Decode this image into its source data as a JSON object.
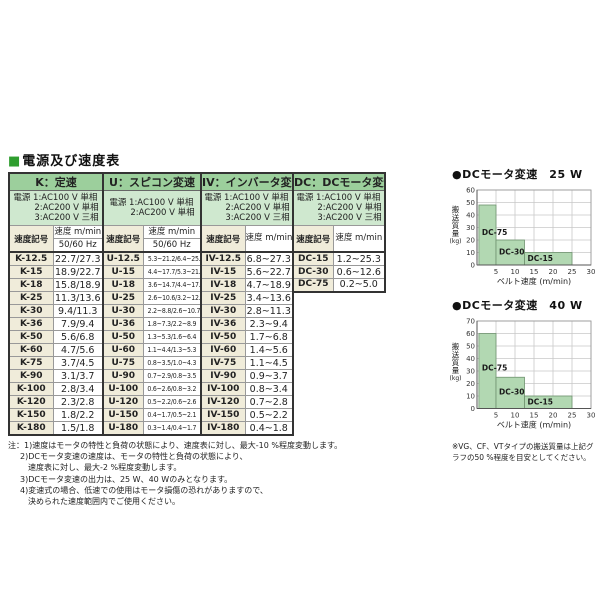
{
  "page_title": {
    "marker": "■",
    "text": "電源及び速度表"
  },
  "speed_table": {
    "sections": [
      {
        "id": "K",
        "header": "K：定速",
        "power_lines": [
          "電源 1:AC100 V 単相",
          "2:AC200 V 単相",
          "3:AC200 V 三相"
        ],
        "symbol_header": "速度記号",
        "speed_header": "速度 m/min",
        "freq_header": "50/60 Hz",
        "rows": [
          [
            "K-12.5",
            "22.7/27.3"
          ],
          [
            "K-15",
            "18.9/22.7"
          ],
          [
            "K-18",
            "15.8/18.9"
          ],
          [
            "K-25",
            "11.3/13.6"
          ],
          [
            "K-30",
            "9.4/11.3"
          ],
          [
            "K-36",
            "7.9/9.4"
          ],
          [
            "K-50",
            "5.6/6.8"
          ],
          [
            "K-60",
            "4.7/5.6"
          ],
          [
            "K-75",
            "3.7/4.5"
          ],
          [
            "K-90",
            "3.1/3.7"
          ],
          [
            "K-100",
            "2.8/3.4"
          ],
          [
            "K-120",
            "2.3/2.8"
          ],
          [
            "K-150",
            "1.8/2.2"
          ],
          [
            "K-180",
            "1.5/1.8"
          ]
        ]
      },
      {
        "id": "U",
        "header": "U：スピコン変速",
        "power_lines": [
          "電源 1:AC100 V 単相",
          "2:AC200 V 単相"
        ],
        "symbol_header": "速度記号",
        "speed_header": "速度 m/min",
        "freq_header": "50/60 Hz",
        "rows": [
          [
            "U-12.5",
            "5.3~21.2/6.4~25.8"
          ],
          [
            "U-15",
            "4.4~17.7/5.3~21.5"
          ],
          [
            "U-18",
            "3.6~14.7/4.4~17.9"
          ],
          [
            "U-25",
            "2.6~10.6/3.2~12.9"
          ],
          [
            "U-30",
            "2.2~8.8/2.6~10.7"
          ],
          [
            "U-36",
            "1.8~7.3/2.2~8.9"
          ],
          [
            "U-50",
            "1.3~5.3/1.6~6.4"
          ],
          [
            "U-60",
            "1.1~4.4/1.3~5.3"
          ],
          [
            "U-75",
            "0.8~3.5/1.0~4.3"
          ],
          [
            "U-90",
            "0.7~2.9/0.8~3.5"
          ],
          [
            "U-100",
            "0.6~2.6/0.8~3.2"
          ],
          [
            "U-120",
            "0.5~2.2/0.6~2.6"
          ],
          [
            "U-150",
            "0.4~1.7/0.5~2.1"
          ],
          [
            "U-180",
            "0.3~1.4/0.4~1.7"
          ]
        ]
      },
      {
        "id": "IV",
        "header": "IV：インバータ変速",
        "power_lines": [
          "電源 1:AC100 V 単相",
          "2:AC200 V 単相",
          "3:AC200 V 三相"
        ],
        "symbol_header": "速度記号",
        "speed_header": "速度 m/min",
        "freq_header": null,
        "rows": [
          [
            "IV-12.5",
            "6.8~27.3"
          ],
          [
            "IV-15",
            "5.6~22.7"
          ],
          [
            "IV-18",
            "4.7~18.9"
          ],
          [
            "IV-25",
            "3.4~13.6"
          ],
          [
            "IV-30",
            "2.8~11.3"
          ],
          [
            "IV-36",
            "2.3~9.4"
          ],
          [
            "IV-50",
            "1.7~6.8"
          ],
          [
            "IV-60",
            "1.4~5.6"
          ],
          [
            "IV-75",
            "1.1~4.5"
          ],
          [
            "IV-90",
            "0.9~3.7"
          ],
          [
            "IV-100",
            "0.8~3.4"
          ],
          [
            "IV-120",
            "0.7~2.8"
          ],
          [
            "IV-150",
            "0.5~2.2"
          ],
          [
            "IV-180",
            "0.4~1.8"
          ]
        ]
      },
      {
        "id": "DC",
        "header": "DC：DCモータ変速",
        "power_lines": [
          "電源 1:AC100 V 単相",
          "2:AC200 V 単相",
          "3:AC200 V 三相"
        ],
        "symbol_header": "速度記号",
        "speed_header": "速度 m/min",
        "freq_header": null,
        "rows": [
          [
            "DC-15",
            "1.2~25.3"
          ],
          [
            "DC-30",
            "0.6~12.6"
          ],
          [
            "DC-75",
            "0.2~5.0"
          ]
        ]
      }
    ]
  },
  "notes": [
    {
      "indent": 0,
      "text": "注：1)速度はモータの特性と負荷の状態により、速度表に対し、最大-10 %程度変動します。"
    },
    {
      "indent": 1,
      "text": "2)DCモータ変速の速度は、モータの特性と負荷の状態により、"
    },
    {
      "indent": 2,
      "text": "速度表に対し、最大-2 %程度変動します。"
    },
    {
      "indent": 1,
      "text": "3)DCモータ変速の出力は、25 W、40 Wのみとなります。"
    },
    {
      "indent": 1,
      "text": "4)変速式の場合、低速での使用はモータ損傷の恐れがありますので、"
    },
    {
      "indent": 2,
      "text": "決められた速度範囲内でご使用ください。"
    }
  ],
  "chart_data": [
    {
      "type": "bar",
      "title": "●DCモータ変速　25 W",
      "xlabel": "ベルト速度 (m/min)",
      "ylabel": "搬送質量 (kg)",
      "xlim": [
        0,
        30
      ],
      "ylim": [
        0,
        60
      ],
      "xticks": [
        5,
        10,
        15,
        20,
        25,
        30
      ],
      "yticks": [
        0,
        10,
        20,
        30,
        40,
        50,
        60
      ],
      "grid": true,
      "legend": "none",
      "bar_color": "#b2d8b2",
      "bars": [
        {
          "label": "DC-75",
          "x_start": 0.5,
          "x_end": 5,
          "height": 48
        },
        {
          "label": "DC-30",
          "x_start": 5,
          "x_end": 12.5,
          "height": 20
        },
        {
          "label": "DC-15",
          "x_start": 12.5,
          "x_end": 25,
          "height": 10
        }
      ]
    },
    {
      "type": "bar",
      "title": "●DCモータ変速　40 W",
      "xlabel": "ベルト速度 (m/min)",
      "ylabel": "搬送質量 (kg)",
      "xlim": [
        0,
        30
      ],
      "ylim": [
        0,
        70
      ],
      "xticks": [
        5,
        10,
        15,
        20,
        25,
        30
      ],
      "yticks": [
        0,
        10,
        20,
        30,
        40,
        50,
        60,
        70
      ],
      "grid": true,
      "legend": "none",
      "bar_color": "#b2d8b2",
      "bars": [
        {
          "label": "DC-75",
          "x_start": 0.5,
          "x_end": 5,
          "height": 60
        },
        {
          "label": "DC-30",
          "x_start": 5,
          "x_end": 12.5,
          "height": 25
        },
        {
          "label": "DC-15",
          "x_start": 12.5,
          "x_end": 25,
          "height": 10
        }
      ]
    }
  ],
  "chart_note": "※VG、CF、VTタイプの搬送質量は上記グラフの50 %程度を目安としてください。",
  "colors": {
    "accent_green": "#2f9e2f",
    "section_header_bg": "#9ccf9c",
    "power_bg": "#cfe8cf",
    "label_cell_bg": "#f0ecda",
    "bar_fill": "#b2d8b2",
    "grid_line": "#c8c8c8"
  }
}
